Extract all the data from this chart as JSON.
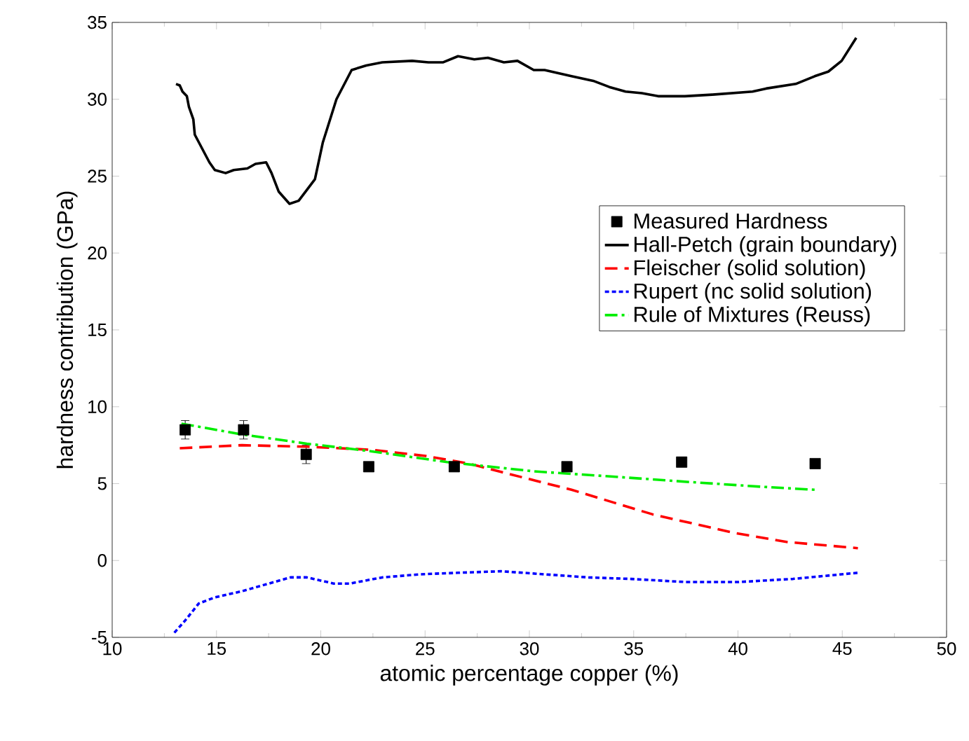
{
  "chart_data": {
    "type": "line",
    "xlabel": "atomic percentage copper (%)",
    "ylabel": "hardness contribution (GPa)",
    "xlim": [
      10,
      50
    ],
    "ylim": [
      -5,
      35
    ],
    "xticks": [
      10,
      15,
      20,
      25,
      30,
      35,
      40,
      45,
      50
    ],
    "yticks": [
      -5,
      0,
      5,
      10,
      15,
      20,
      25,
      30,
      35
    ],
    "grid": false,
    "legend": "right",
    "series": [
      {
        "name": "Measured Hardness",
        "type": "scatter",
        "marker": "square",
        "color": "#000000",
        "x": [
          13.5,
          16.3,
          19.3,
          22.3,
          26.4,
          31.8,
          37.3,
          43.7
        ],
        "values": [
          8.5,
          8.5,
          6.9,
          6.1,
          6.1,
          6.1,
          6.4,
          6.3
        ],
        "errors": [
          0.6,
          0.6,
          0.6,
          null,
          null,
          null,
          null,
          null
        ]
      },
      {
        "name": "Hall-Petch (grain boundary)",
        "line_style": "solid",
        "color": "#000000",
        "x": [
          13.06,
          13.24,
          13.37,
          13.58,
          13.68,
          13.89,
          13.96,
          14.27,
          14.66,
          14.92,
          15.44,
          15.83,
          16.48,
          16.87,
          17.38,
          17.64,
          17.98,
          18.5,
          18.94,
          19.72,
          20.1,
          20.75,
          21.48,
          22.18,
          22.95,
          24.38,
          25.16,
          25.85,
          26.58,
          27.36,
          28.01,
          28.78,
          29.43,
          30.21,
          30.73,
          32.02,
          33.06,
          33.83,
          34.61,
          35.39,
          36.17,
          37.46,
          38.76,
          40.7,
          41.35,
          42.77,
          43.68,
          44.33,
          44.97,
          45.67
        ],
        "values": [
          31.0,
          30.9,
          30.5,
          30.2,
          29.5,
          28.7,
          27.7,
          26.9,
          25.9,
          25.4,
          25.2,
          25.4,
          25.5,
          25.8,
          25.9,
          25.2,
          24.0,
          23.2,
          23.4,
          24.8,
          27.2,
          30.0,
          31.9,
          32.2,
          32.4,
          32.5,
          32.4,
          32.4,
          32.8,
          32.6,
          32.7,
          32.4,
          32.5,
          31.9,
          31.9,
          31.5,
          31.2,
          30.8,
          30.5,
          30.4,
          30.2,
          30.2,
          30.3,
          30.5,
          30.7,
          31.0,
          31.5,
          31.8,
          32.5,
          34.0
        ]
      },
      {
        "name": "Fleischer (solid solution)",
        "line_style": "dashed",
        "color": "#ff0000",
        "x": [
          13.24,
          16.22,
          19.33,
          22.44,
          25.03,
          27.1,
          29.69,
          32.02,
          35.91,
          39.79,
          42.38,
          45.75
        ],
        "values": [
          7.3,
          7.5,
          7.4,
          7.2,
          6.8,
          6.3,
          5.4,
          4.6,
          3.0,
          1.8,
          1.2,
          0.8
        ]
      },
      {
        "name": "Rupert (nc solid solution)",
        "line_style": "dotted",
        "color": "#0000ff",
        "x": [
          12.98,
          13.5,
          14.15,
          14.92,
          16.22,
          17.25,
          18.55,
          19.33,
          20.62,
          21.4,
          22.95,
          24.77,
          26.58,
          28.65,
          30.73,
          32.8,
          34.87,
          37.46,
          40.05,
          42.64,
          45.75
        ],
        "values": [
          -4.7,
          -3.9,
          -2.8,
          -2.4,
          -2.0,
          -1.6,
          -1.1,
          -1.1,
          -1.5,
          -1.5,
          -1.1,
          -0.9,
          -0.8,
          -0.7,
          -0.9,
          -1.1,
          -1.2,
          -1.4,
          -1.4,
          -1.2,
          -0.8
        ]
      },
      {
        "name": "Rule of Mixtures (Reuss)",
        "line_style": "dashdot",
        "color": "#00ee00",
        "x": [
          13.32,
          16.22,
          19.33,
          22.44,
          26.06,
          30.21,
          34.61,
          37.72,
          41.09,
          43.68
        ],
        "values": [
          8.9,
          8.2,
          7.6,
          7.1,
          6.4,
          5.8,
          5.4,
          5.1,
          4.8,
          4.6
        ]
      }
    ]
  }
}
